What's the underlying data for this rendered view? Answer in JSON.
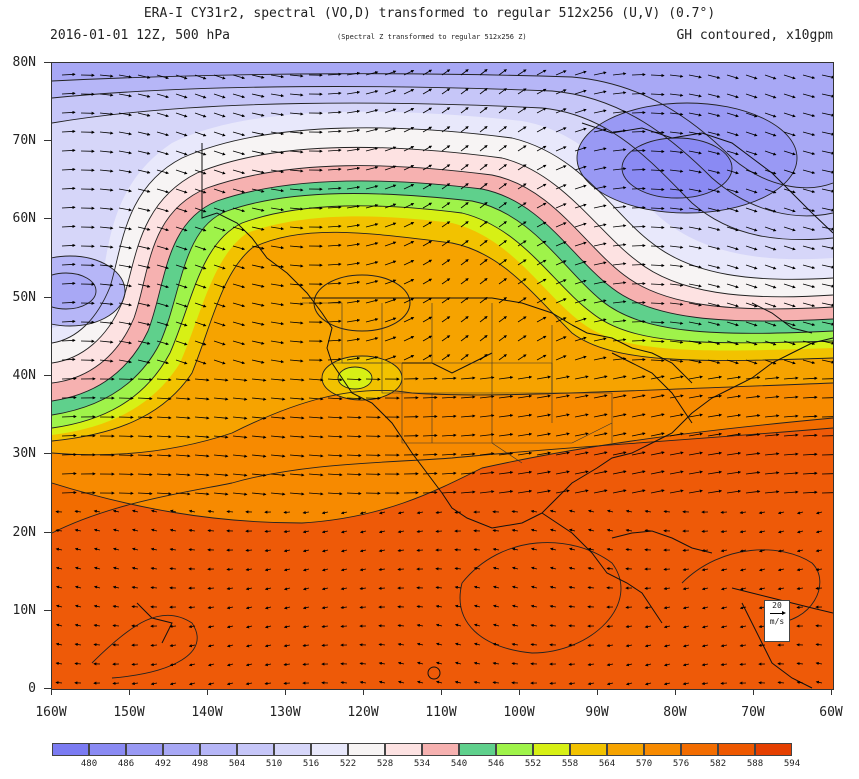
{
  "header": {
    "title": "ERA-I CY31r2, spectral (VO,D) transformed to regular 512x256 (U,V) (0.7°)",
    "date_level": "2016-01-01 12Z, 500 hPa",
    "note": "(Spectral Z transformed to regular 512x256 Z)",
    "contour_note": "GH contoured, x10gpm"
  },
  "axes": {
    "lat_labels": [
      "80N",
      "70N",
      "60N",
      "50N",
      "40N",
      "30N",
      "20N",
      "10N",
      "0"
    ],
    "lon_labels": [
      "160W",
      "150W",
      "140W",
      "130W",
      "120W",
      "110W",
      "100W",
      "90W",
      "80W",
      "70W",
      "60W"
    ]
  },
  "colorbar": {
    "labels": [
      "480",
      "486",
      "492",
      "498",
      "504",
      "510",
      "516",
      "522",
      "528",
      "534",
      "540",
      "546",
      "552",
      "558",
      "564",
      "570",
      "576",
      "582",
      "588",
      "594"
    ],
    "colors": [
      "#7b7bf2",
      "#8a8af3",
      "#9999f4",
      "#a8a8f5",
      "#b6b6f7",
      "#c6c6f8",
      "#d6d6f9",
      "#e8e8fb",
      "#f7f4f4",
      "#fde2e2",
      "#f6b1b0",
      "#5fd08c",
      "#9ff34a",
      "#d7f015",
      "#f2c200",
      "#f6a300",
      "#f78a00",
      "#f26c00",
      "#ee5800",
      "#e53f00"
    ]
  },
  "vector_key": {
    "value": "20",
    "unit": "m/s"
  },
  "fields": {
    "geopotential_units": "x10gpm",
    "lat_range": [
      0,
      80
    ],
    "lon_range": [
      -160,
      -60
    ]
  }
}
